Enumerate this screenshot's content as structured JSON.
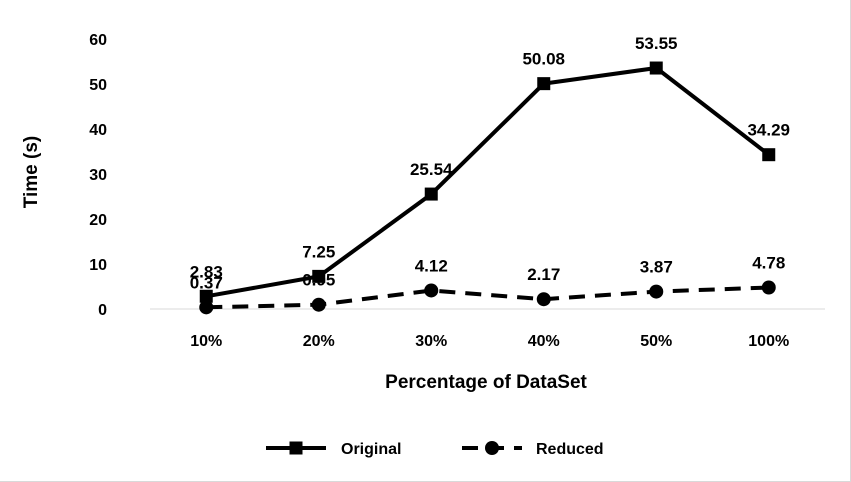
{
  "chart_data": {
    "type": "line",
    "title": "",
    "xlabel": "Percentage of DataSet",
    "ylabel": "Time (s)",
    "categories": [
      "10%",
      "20%",
      "30%",
      "40%",
      "50%",
      "100%"
    ],
    "ylim": [
      0,
      60
    ],
    "yticks": [
      0,
      10,
      20,
      30,
      40,
      50,
      60
    ],
    "grid": false,
    "legend_position": "bottom",
    "series": [
      {
        "name": "Original",
        "values": [
          2.83,
          7.25,
          25.54,
          50.08,
          53.55,
          34.29
        ],
        "labels": [
          "2.83",
          "7.25",
          "25.54",
          "50.08",
          "53.55",
          "34.29"
        ],
        "line_style": "solid",
        "marker": "square",
        "color": "#000000"
      },
      {
        "name": "Reduced",
        "values": [
          0.37,
          0.95,
          4.12,
          2.17,
          3.87,
          4.78
        ],
        "labels": [
          "0.37",
          "0.95",
          "4.12",
          "2.17",
          "3.87",
          "4.78"
        ],
        "line_style": "dashed",
        "marker": "circle",
        "color": "#000000"
      }
    ]
  }
}
